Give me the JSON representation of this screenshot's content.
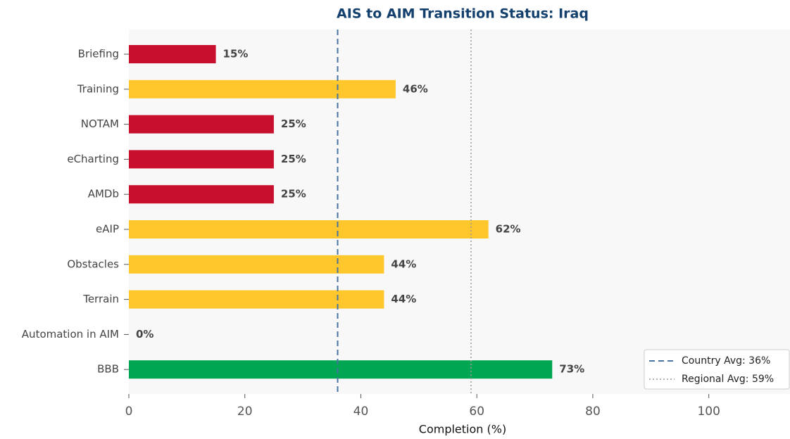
{
  "chart_data": {
    "type": "barh",
    "title": "AIS to AIM Transition Status: Iraq",
    "xlabel": "Completion (%)",
    "categories": [
      "Briefing",
      "Training",
      "NOTAM",
      "eCharting",
      "AMDb",
      "eAIP",
      "Obstacles",
      "Terrain",
      "Automation in AIM",
      "BBB"
    ],
    "values": [
      15,
      46,
      25,
      25,
      25,
      62,
      44,
      44,
      0,
      73
    ],
    "value_labels": [
      "15%",
      "46%",
      "25%",
      "25%",
      "25%",
      "62%",
      "44%",
      "44%",
      "0%",
      "73%"
    ],
    "colors": [
      "#c8102e",
      "#ffc72c",
      "#c8102e",
      "#c8102e",
      "#c8102e",
      "#ffc72c",
      "#ffc72c",
      "#ffc72c",
      "#c8102e",
      "#00a651"
    ],
    "xlim": [
      0,
      114
    ],
    "xticks": [
      0,
      20,
      40,
      60,
      80,
      100
    ],
    "reference_lines": [
      {
        "name": "Country Avg: 36%",
        "value": 36,
        "color": "#4a74a0",
        "style": "dashed"
      },
      {
        "name": "Regional Avg: 59%",
        "value": 59,
        "color": "#999999",
        "style": "dotted"
      }
    ],
    "legend": "lower right"
  }
}
